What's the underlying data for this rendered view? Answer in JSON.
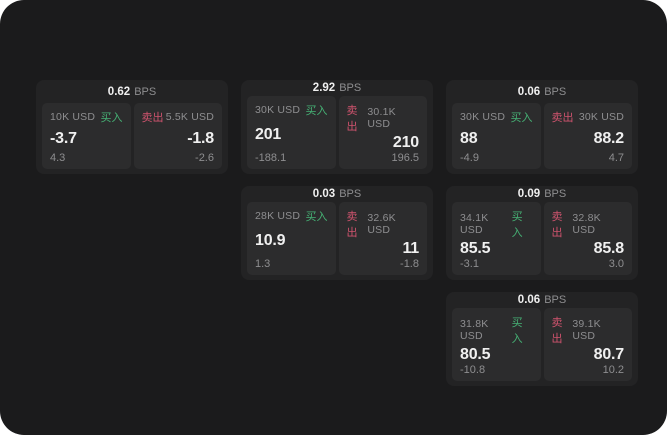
{
  "labels": {
    "bps_unit": "BPS",
    "buy": "买入",
    "sell": "卖出"
  },
  "colors": {
    "page_bg": "#ffffff",
    "container_bg": "#1b1b1c",
    "card_bg": "#232324",
    "panel_bg": "#2c2c2d",
    "text_primary": "#f0f0f0",
    "text_muted": "#8e8e90",
    "buy": "#46b275",
    "sell": "#d0536e"
  },
  "cards": [
    {
      "bps": "0.62",
      "row": 1,
      "col": 1,
      "buy": {
        "amount": "10K USD",
        "price": "-3.7",
        "change": "4.3"
      },
      "sell": {
        "amount": "5.5K USD",
        "price": "-1.8",
        "change": "-2.6"
      }
    },
    {
      "bps": "2.92",
      "row": 1,
      "col": 2,
      "buy": {
        "amount": "30K USD",
        "price": "201",
        "change": "-188.1"
      },
      "sell": {
        "amount": "30.1K USD",
        "price": "210",
        "change": "196.5"
      }
    },
    {
      "bps": "0.06",
      "row": 1,
      "col": 3,
      "buy": {
        "amount": "30K USD",
        "price": "88",
        "change": "-4.9"
      },
      "sell": {
        "amount": "30K USD",
        "price": "88.2",
        "change": "4.7"
      }
    },
    {
      "bps": "0.03",
      "row": 2,
      "col": 2,
      "buy": {
        "amount": "28K USD",
        "price": "10.9",
        "change": "1.3"
      },
      "sell": {
        "amount": "32.6K USD",
        "price": "11",
        "change": "-1.8"
      }
    },
    {
      "bps": "0.09",
      "row": 2,
      "col": 3,
      "buy": {
        "amount": "34.1K USD",
        "price": "85.5",
        "change": "-3.1"
      },
      "sell": {
        "amount": "32.8K USD",
        "price": "85.8",
        "change": "3.0"
      }
    },
    {
      "bps": "0.06",
      "row": 3,
      "col": 3,
      "buy": {
        "amount": "31.8K USD",
        "price": "80.5",
        "change": "-10.8"
      },
      "sell": {
        "amount": "39.1K USD",
        "price": "80.7",
        "change": "10.2"
      }
    }
  ]
}
